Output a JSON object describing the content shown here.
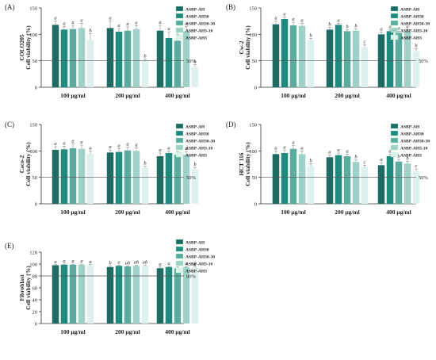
{
  "colors": [
    "#1d6b62",
    "#1f8a7e",
    "#5cab9f",
    "#9fd1c8",
    "#dff1ee"
  ],
  "legend_labels": [
    "ASBP-AH",
    "ASBP-AH30",
    "ASBP-AH30-30",
    "ASBP-AH3-10",
    "ASBP-AH3"
  ],
  "chart_data": [
    {
      "type": "bar",
      "panel_label": "(A)",
      "cell_line": "COLO205",
      "ylabel": "Cell viability (%)",
      "ylim": [
        0,
        150
      ],
      "yticks": [
        0,
        50,
        100,
        150
      ],
      "categories": [
        "100 μg/ml",
        "200 μg/ml",
        "400 μg/ml"
      ],
      "series": [
        {
          "name": "ASBP-AH",
          "values": [
            118,
            112,
            107
          ],
          "errors": [
            7,
            13,
            10
          ],
          "letters": [
            "a",
            "a",
            "a"
          ]
        },
        {
          "name": "ASBP-AH30",
          "values": [
            109,
            105,
            93
          ],
          "errors": [
            6,
            6,
            12
          ],
          "letters": [
            "a",
            "a",
            "a"
          ]
        },
        {
          "name": "ASBP-AH30-30",
          "values": [
            110,
            107,
            88
          ],
          "errors": [
            7,
            7,
            12
          ],
          "letters": [
            "a",
            "a",
            "a"
          ]
        },
        {
          "name": "ASBP-AH3-10",
          "values": [
            112,
            110,
            106
          ],
          "errors": [
            9,
            6,
            9
          ],
          "letters": [
            "a",
            "a",
            "a"
          ]
        },
        {
          "name": "ASBP-AH3",
          "values": [
            89,
            50,
            38
          ],
          "errors": [
            12,
            3,
            5
          ],
          "letters": [
            "b",
            "b",
            "b"
          ]
        }
      ],
      "refline": 50,
      "refline_label": "50%"
    },
    {
      "type": "bar",
      "panel_label": "(B)",
      "cell_line": "Cw-2",
      "ylabel": "Cell viability (%)",
      "ylim": [
        0,
        150
      ],
      "yticks": [
        0,
        50,
        100,
        150
      ],
      "categories": [
        "100 μg/ml",
        "200 μg/ml",
        "400 μg/ml"
      ],
      "series": [
        {
          "name": "ASBP-AH",
          "values": [
            119,
            109,
            100
          ],
          "errors": [
            6,
            4,
            4
          ],
          "letters": [
            "a",
            "b",
            "a"
          ]
        },
        {
          "name": "ASBP-AH30",
          "values": [
            129,
            118,
            106
          ],
          "errors": [
            4,
            3,
            3
          ],
          "letters": [
            "a",
            "a",
            "a"
          ]
        },
        {
          "name": "ASBP-AH30-30",
          "values": [
            117,
            106,
            103
          ],
          "errors": [
            6,
            3,
            3
          ],
          "letters": [
            "a",
            "b",
            "a"
          ]
        },
        {
          "name": "ASBP-AH3-10",
          "values": [
            116,
            107,
            106
          ],
          "errors": [
            5,
            3,
            3
          ],
          "letters": [
            "a",
            "b",
            "a"
          ]
        },
        {
          "name": "ASBP-AH3",
          "values": [
            89,
            76,
            68
          ],
          "errors": [
            3,
            4,
            5
          ],
          "letters": [
            "b",
            "c",
            "b"
          ]
        }
      ],
      "refline": 50,
      "refline_label": "50%"
    },
    {
      "type": "bar",
      "panel_label": "(C)",
      "cell_line": "Caco-2",
      "ylabel": "Cell viability (%)",
      "ylim": [
        0,
        150
      ],
      "yticks": [
        0,
        50,
        100,
        150
      ],
      "categories": [
        "100 μg/ml",
        "200 μg/ml",
        "400 μg/ml"
      ],
      "series": [
        {
          "name": "ASBP-AH",
          "values": [
            102,
            97,
            90
          ],
          "errors": [
            6,
            5,
            6
          ],
          "letters": [
            "a",
            "a",
            "a"
          ]
        },
        {
          "name": "ASBP-AH30",
          "values": [
            103,
            98,
            96
          ],
          "errors": [
            6,
            6,
            4
          ],
          "letters": [
            "a",
            "a",
            "a"
          ]
        },
        {
          "name": "ASBP-AH30-30",
          "values": [
            105,
            101,
            93
          ],
          "errors": [
            8,
            6,
            6
          ],
          "letters": [
            "a",
            "a",
            "a"
          ]
        },
        {
          "name": "ASBP-AH3-10",
          "values": [
            104,
            100,
            93
          ],
          "errors": [
            7,
            6,
            6
          ],
          "letters": [
            "a",
            "a",
            "a"
          ]
        },
        {
          "name": "ASBP-AH3",
          "values": [
            94,
            68,
            65
          ],
          "errors": [
            6,
            3,
            4
          ],
          "letters": [
            "a",
            "b",
            "b"
          ]
        }
      ],
      "refline": 50,
      "refline_label": "50%"
    },
    {
      "type": "bar",
      "panel_label": "(D)",
      "cell_line": "HCT 116",
      "ylabel": "Cell viability (%)",
      "ylim": [
        0,
        150
      ],
      "yticks": [
        0,
        50,
        100,
        150
      ],
      "categories": [
        "100 μg/ml",
        "200 μg/ml",
        "400 μg/ml"
      ],
      "series": [
        {
          "name": "ASBP-AH",
          "values": [
            94,
            88,
            73
          ],
          "errors": [
            6,
            4,
            5
          ],
          "letters": [
            "a",
            "a",
            "a"
          ]
        },
        {
          "name": "ASBP-AH30",
          "values": [
            96,
            92,
            90
          ],
          "errors": [
            5,
            4,
            4
          ],
          "letters": [
            "a",
            "a",
            "a"
          ]
        },
        {
          "name": "ASBP-AH30-30",
          "values": [
            104,
            90,
            80
          ],
          "errors": [
            6,
            4,
            4
          ],
          "letters": [
            "a",
            "a",
            "b"
          ]
        },
        {
          "name": "ASBP-AH3-10",
          "values": [
            94,
            79,
            76
          ],
          "errors": [
            6,
            4,
            4
          ],
          "letters": [
            "a",
            "b",
            "b"
          ]
        },
        {
          "name": "ASBP-AH3",
          "values": [
            72,
            70,
            62
          ],
          "errors": [
            4,
            3,
            4
          ],
          "letters": [
            "b",
            "c",
            "c"
          ]
        }
      ],
      "refline": 50,
      "refline_label": "50%"
    },
    {
      "type": "bar",
      "panel_label": "(E)",
      "cell_line": "Fibroblast",
      "ylabel": "Cell viability (%)",
      "ylim": [
        0,
        120
      ],
      "yticks": [
        0,
        20,
        40,
        60,
        80,
        100,
        120
      ],
      "categories": [
        "100 μg/ml",
        "200 μg/ml",
        "400 μg/ml"
      ],
      "series": [
        {
          "name": "ASBP-AH",
          "values": [
            98,
            95,
            93
          ],
          "errors": [
            1,
            2,
            2
          ],
          "letters": [
            "a",
            "b",
            "a"
          ]
        },
        {
          "name": "ASBP-AH30",
          "values": [
            99,
            97,
            95
          ],
          "errors": [
            1,
            1,
            1
          ],
          "letters": [
            "a",
            "a",
            "a"
          ]
        },
        {
          "name": "ASBP-AH30-30",
          "values": [
            99,
            96,
            93
          ],
          "errors": [
            1,
            1,
            2
          ],
          "letters": [
            "a",
            "ab",
            "a"
          ]
        },
        {
          "name": "ASBP-AH3-10",
          "values": [
            99,
            97,
            95
          ],
          "errors": [
            1,
            1,
            1
          ],
          "letters": [
            "a",
            "ab",
            "a"
          ]
        },
        {
          "name": "ASBP-AH3",
          "values": [
            98,
            97,
            94
          ],
          "errors": [
            1,
            1,
            1
          ],
          "letters": [
            "a",
            "ab",
            "a"
          ]
        }
      ],
      "refline": 80,
      "refline_label": "80%"
    }
  ]
}
